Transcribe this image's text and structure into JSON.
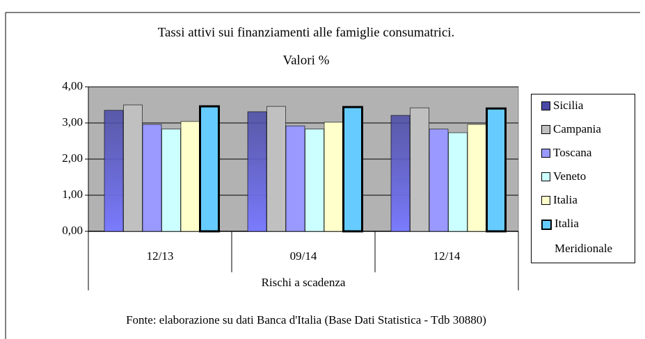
{
  "chart_data": {
    "type": "bar",
    "title": "Tassi attivi sui finanziamenti alle famiglie consumatrici.",
    "subtitle": "Valori %",
    "x_label": "Rischi a scadenza",
    "source": "Fonte: elaborazione su dati Banca d'Italia (Base Dati Statistica - Tdb 30880)",
    "categories": [
      "12/13",
      "09/14",
      "12/14"
    ],
    "series": [
      {
        "name": "Sicilia",
        "color": "#4a4aa6",
        "values": [
          3.35,
          3.31,
          3.21
        ]
      },
      {
        "name": "Campania",
        "color": "#c0c0c0",
        "values": [
          3.5,
          3.46,
          3.42
        ]
      },
      {
        "name": "Toscana",
        "color": "#9999ff",
        "values": [
          2.96,
          2.92,
          2.83
        ]
      },
      {
        "name": "Veneto",
        "color": "#ccffff",
        "values": [
          2.83,
          2.83,
          2.73
        ]
      },
      {
        "name": "Italia",
        "color": "#ffffcc",
        "values": [
          3.04,
          3.02,
          2.96
        ]
      },
      {
        "name": "Italia Meridionale",
        "color": "#66ccff",
        "values": [
          3.46,
          3.44,
          3.4
        ]
      }
    ],
    "ylim": [
      0,
      4
    ],
    "yticks": [
      {
        "value": 0,
        "label": "0,00"
      },
      {
        "value": 1,
        "label": "1,00"
      },
      {
        "value": 2,
        "label": "2,00"
      },
      {
        "value": 3,
        "label": "3,00"
      },
      {
        "value": 4,
        "label": "4,00"
      }
    ],
    "grid": true,
    "legend": "right"
  }
}
